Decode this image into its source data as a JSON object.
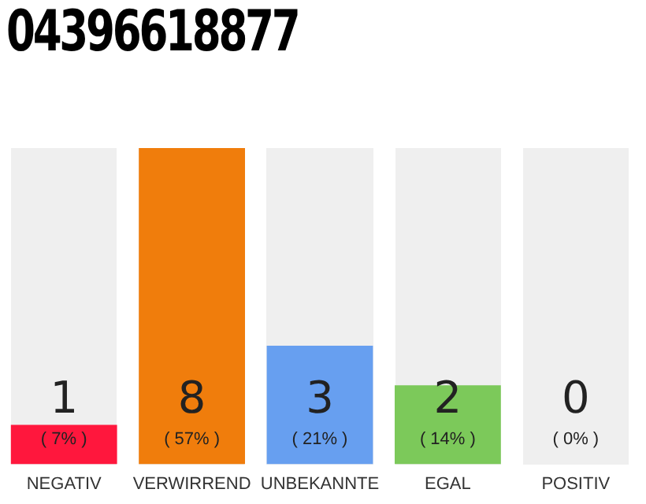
{
  "chart_data": {
    "type": "bar",
    "title": "04396618877",
    "categories": [
      "NEGATIV",
      "VERWIRREND",
      "UNBEKANNTE",
      "EGAL",
      "POSITIV"
    ],
    "values": [
      1,
      8,
      3,
      2,
      0
    ],
    "colors": [
      "#ff173d",
      "#f07d0c",
      "#679ff0",
      "#7cc95a",
      "#25a847"
    ],
    "value_labels": [
      "1\n( 7% )",
      "8\n( 57% )",
      "3\n( 21% )",
      "2\n( 14% )",
      "0\n( 0% )"
    ],
    "ylim": [
      0,
      8
    ],
    "tick_labels": "x",
    "grid": false,
    "legend": false
  }
}
